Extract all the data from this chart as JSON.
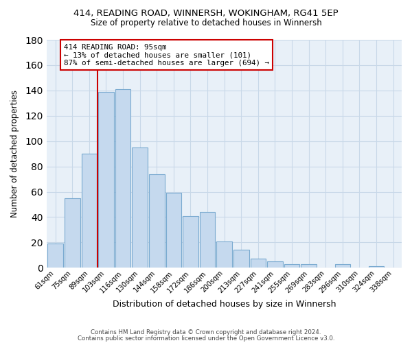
{
  "title1": "414, READING ROAD, WINNERSH, WOKINGHAM, RG41 5EP",
  "title2": "Size of property relative to detached houses in Winnersh",
  "xlabel": "Distribution of detached houses by size in Winnersh",
  "ylabel": "Number of detached properties",
  "bar_labels": [
    "61sqm",
    "75sqm",
    "89sqm",
    "103sqm",
    "116sqm",
    "130sqm",
    "144sqm",
    "158sqm",
    "172sqm",
    "186sqm",
    "200sqm",
    "213sqm",
    "227sqm",
    "241sqm",
    "255sqm",
    "269sqm",
    "283sqm",
    "296sqm",
    "310sqm",
    "324sqm",
    "338sqm"
  ],
  "bar_values": [
    19,
    55,
    90,
    139,
    141,
    95,
    74,
    59,
    41,
    44,
    21,
    14,
    7,
    5,
    3,
    3,
    0,
    3,
    0,
    1,
    0
  ],
  "bar_color": "#c5d9ee",
  "bar_edge_color": "#7aaad0",
  "vline_color": "#cc0000",
  "annotation_text": "414 READING ROAD: 95sqm\n← 13% of detached houses are smaller (101)\n87% of semi-detached houses are larger (694) →",
  "annotation_box_color": "#ffffff",
  "annotation_box_edge": "#cc0000",
  "ylim": [
    0,
    180
  ],
  "yticks": [
    0,
    20,
    40,
    60,
    80,
    100,
    120,
    140,
    160,
    180
  ],
  "footer1": "Contains HM Land Registry data © Crown copyright and database right 2024.",
  "footer2": "Contains public sector information licensed under the Open Government Licence v3.0.",
  "bg_color": "#ffffff",
  "grid_color": "#c8d8e8"
}
